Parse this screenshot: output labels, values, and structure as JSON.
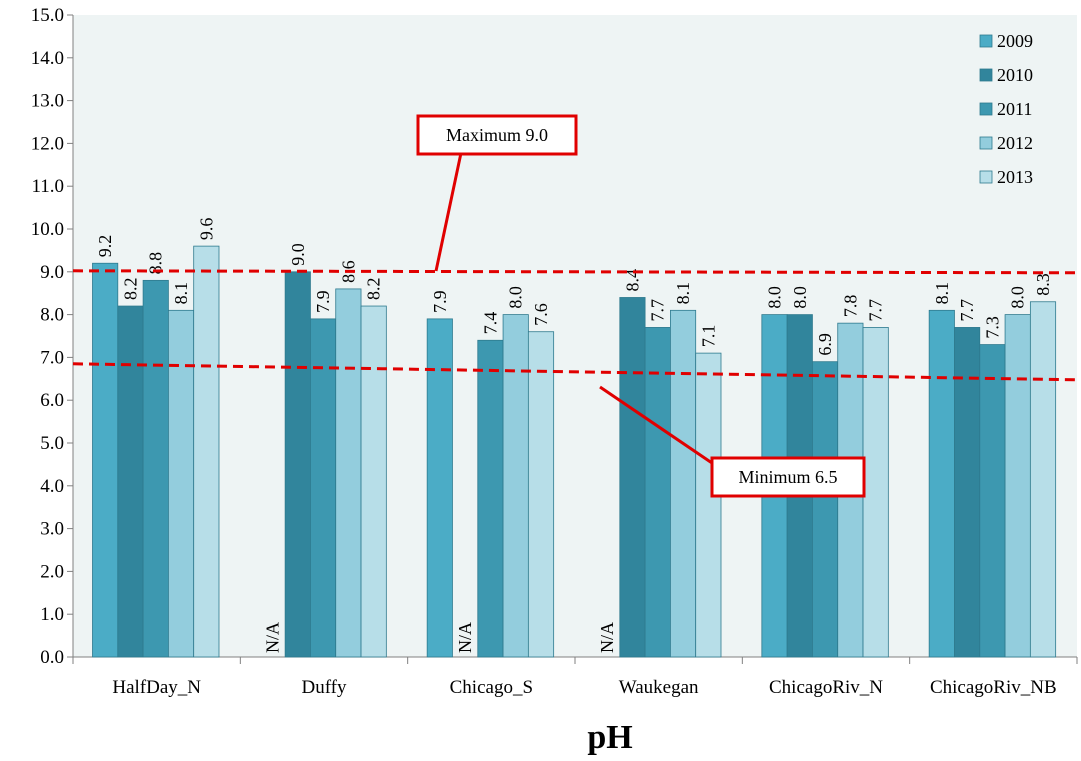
{
  "chart_data": {
    "type": "bar",
    "title": "",
    "xlabel": "pH",
    "ylabel": "",
    "ylim": [
      0,
      15
    ],
    "yticks": [
      "0.0",
      "1.0",
      "2.0",
      "3.0",
      "4.0",
      "5.0",
      "6.0",
      "7.0",
      "8.0",
      "9.0",
      "10.0",
      "11.0",
      "12.0",
      "13.0",
      "14.0",
      "15.0"
    ],
    "grid": false,
    "legend_position": "top-right",
    "categories": [
      "HalfDay_N",
      "Duffy",
      "Chicago_S",
      "Waukegan",
      "ChicagoRiv_N",
      "ChicagoRiv_NB"
    ],
    "series": [
      {
        "name": "2009",
        "color": "#4BACC6",
        "values": [
          9.2,
          null,
          7.9,
          null,
          8.0,
          8.1
        ],
        "labels": [
          "9.2",
          "N/A",
          "7.9",
          "N/A",
          "8.0",
          "8.1"
        ]
      },
      {
        "name": "2010",
        "color": "#31859C",
        "values": [
          8.2,
          9.0,
          null,
          8.4,
          8.0,
          7.7
        ],
        "labels": [
          "8.2",
          "9.0",
          "N/A",
          "8.4",
          "8.0",
          "7.7"
        ]
      },
      {
        "name": "2011",
        "color": "#3D98B0",
        "values": [
          8.8,
          7.9,
          7.4,
          7.7,
          6.9,
          7.3
        ],
        "labels": [
          "8.8",
          "7.9",
          "7.4",
          "7.7",
          "6.9",
          "7.3"
        ]
      },
      {
        "name": "2012",
        "color": "#93CDDD",
        "values": [
          8.1,
          8.6,
          8.0,
          8.1,
          7.8,
          8.0
        ],
        "labels": [
          "8.1",
          "8.6",
          "8.0",
          "8.1",
          "7.8",
          "8.0"
        ]
      },
      {
        "name": "2013",
        "color": "#B7DEE8",
        "values": [
          9.6,
          8.2,
          7.6,
          7.1,
          7.7,
          8.3
        ],
        "labels": [
          "9.6",
          "8.2",
          "7.6",
          "7.1",
          "7.7",
          "8.3"
        ]
      }
    ],
    "reference_lines": [
      {
        "label": "Maximum  9.0",
        "value": 9.0,
        "color": "#E00000"
      },
      {
        "label": "Minimum  6.5",
        "value": 6.5,
        "color": "#E00000"
      }
    ],
    "colors": {
      "plot_background": "#EEF4F4",
      "annotation": "#E00000"
    }
  }
}
